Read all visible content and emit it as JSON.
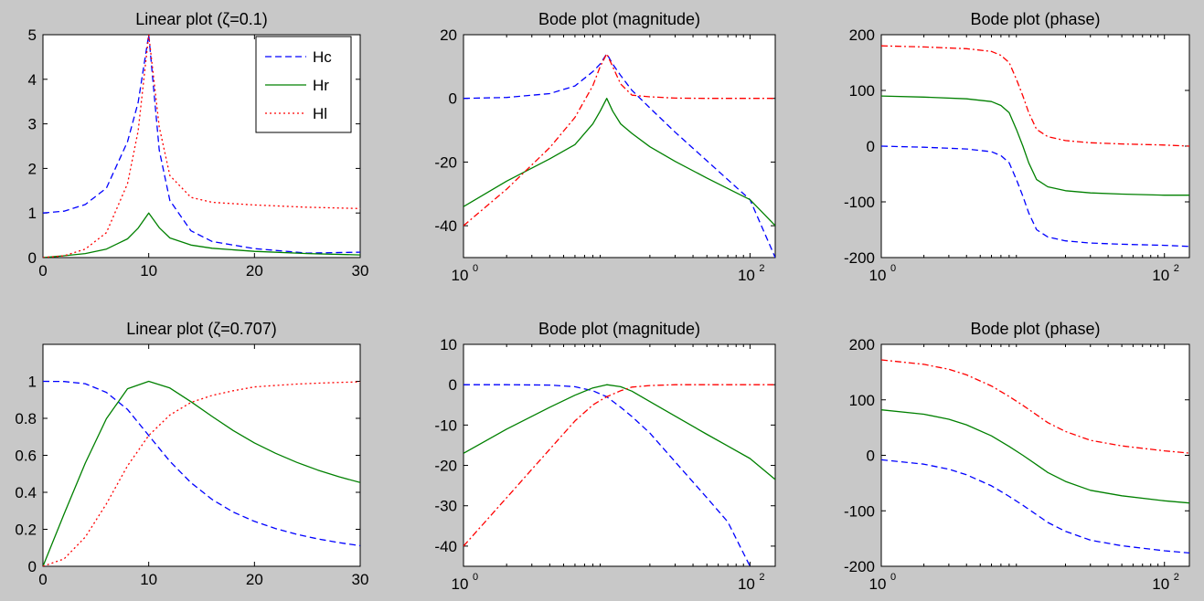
{
  "figure": {
    "background": "#c8c8c8",
    "colors": {
      "Hc": "#0000ff",
      "Hr": "#008000",
      "Hl": "#ff0000"
    },
    "line_styles": {
      "Hc": "dashed",
      "Hr": "solid",
      "Hl": "dotted / dash-dot"
    }
  },
  "chart_data": [
    {
      "id": "p1",
      "type": "line",
      "title": "Linear plot (ζ=0.1)",
      "xscale": "linear",
      "xlim": [
        0,
        30
      ],
      "ylim": [
        0,
        5
      ],
      "xticks": [
        0,
        10,
        20,
        30
      ],
      "xtick_labels": [
        "0",
        "10",
        "20",
        "30"
      ],
      "yticks": [
        0,
        1,
        2,
        3,
        4,
        5
      ],
      "ytick_labels": [
        "0",
        "1",
        "2",
        "3",
        "4",
        "5"
      ],
      "legend": {
        "position": "top-right",
        "entries": [
          "Hc",
          "Hr",
          "Hl"
        ]
      },
      "series": [
        {
          "name": "Hc",
          "style": "dashed",
          "x": [
            0,
            2,
            4,
            6,
            8,
            9,
            10,
            11,
            12,
            14,
            16,
            20,
            25,
            30
          ],
          "y": [
            1.0,
            1.04,
            1.19,
            1.56,
            2.6,
            3.48,
            5.0,
            2.41,
            1.28,
            0.6,
            0.36,
            0.2,
            0.1,
            0.12
          ]
        },
        {
          "name": "Hr",
          "style": "solid",
          "x": [
            0,
            2,
            4,
            6,
            8,
            9,
            10,
            11,
            12,
            14,
            16,
            20,
            25,
            30
          ],
          "y": [
            0.0,
            0.04,
            0.09,
            0.19,
            0.42,
            0.66,
            1.0,
            0.67,
            0.44,
            0.28,
            0.21,
            0.14,
            0.09,
            0.06
          ]
        },
        {
          "name": "Hl",
          "style": "dotted",
          "x": [
            0,
            2,
            4,
            6,
            8,
            9,
            10,
            11,
            12,
            14,
            16,
            20,
            25,
            30
          ],
          "y": [
            0.0,
            0.04,
            0.19,
            0.56,
            1.66,
            2.84,
            5.0,
            2.93,
            1.84,
            1.35,
            1.24,
            1.18,
            1.13,
            1.1
          ]
        }
      ]
    },
    {
      "id": "p2",
      "type": "line",
      "title": "Bode plot (magnitude)",
      "xscale": "log",
      "xlim": [
        1,
        150
      ],
      "ylim": [
        -50,
        20
      ],
      "xticks": [
        1,
        100
      ],
      "xtick_labels": [
        {
          "base": "10",
          "exp": "0"
        },
        {
          "base": "10",
          "exp": "2"
        }
      ],
      "yticks": [
        20,
        0,
        -20,
        -40
      ],
      "ytick_labels": [
        "20",
        "0",
        "-20",
        "-40"
      ],
      "series": [
        {
          "name": "Hc",
          "style": "dashed",
          "x": [
            1,
            2,
            4,
            6,
            8,
            9,
            10,
            11,
            12.5,
            15,
            20,
            30,
            50,
            100,
            150
          ],
          "y": [
            0.0,
            0.3,
            1.5,
            3.9,
            8.4,
            10.8,
            14.0,
            10.8,
            7.2,
            2.5,
            -3.0,
            -10.6,
            -19.6,
            -31.8,
            -50.0
          ]
        },
        {
          "name": "Hr",
          "style": "solid",
          "x": [
            1,
            2,
            4,
            6,
            8,
            9,
            10,
            11,
            12.5,
            15,
            20,
            30,
            50,
            70,
            100,
            150
          ],
          "y": [
            -34.0,
            -26.0,
            -19.0,
            -14.5,
            -8.0,
            -4.0,
            0.0,
            -4.0,
            -8.0,
            -11.0,
            -15.2,
            -19.8,
            -25.0,
            -28.3,
            -31.8,
            -40.0
          ]
        },
        {
          "name": "Hl",
          "style": "dash-dot",
          "x": [
            1,
            2,
            4,
            6,
            8,
            9,
            10,
            11,
            12.5,
            15,
            20,
            30,
            50,
            100,
            150
          ],
          "y": [
            -40.0,
            -28.5,
            -15.5,
            -6.0,
            4.0,
            10.0,
            14.0,
            10.0,
            4.5,
            1.0,
            0.5,
            0.1,
            0.0,
            0.0,
            0.0
          ]
        }
      ]
    },
    {
      "id": "p3",
      "type": "line",
      "title": "Bode plot (phase)",
      "xscale": "log",
      "xlim": [
        1,
        150
      ],
      "ylim": [
        -200,
        200
      ],
      "xticks": [
        1,
        100
      ],
      "xtick_labels": [
        {
          "base": "10",
          "exp": "0"
        },
        {
          "base": "10",
          "exp": "2"
        }
      ],
      "yticks": [
        200,
        100,
        0,
        -100,
        -200
      ],
      "ytick_labels": [
        "200",
        "100",
        "0",
        "-100",
        "-200"
      ],
      "series": [
        {
          "name": "Hc",
          "style": "dashed",
          "x": [
            1,
            2,
            4,
            6,
            7,
            8,
            9,
            10,
            11,
            12.5,
            15,
            20,
            30,
            50,
            100,
            150
          ],
          "y": [
            0,
            -2,
            -5,
            -10,
            -17,
            -30,
            -60,
            -90,
            -120,
            -150,
            -163,
            -170,
            -174,
            -176,
            -178,
            -180
          ]
        },
        {
          "name": "Hr",
          "style": "solid",
          "x": [
            1,
            2,
            4,
            6,
            7,
            8,
            9,
            10,
            11,
            12.5,
            15,
            20,
            30,
            50,
            100,
            150
          ],
          "y": [
            90,
            88,
            85,
            80,
            73,
            60,
            30,
            0,
            -30,
            -60,
            -73,
            -80,
            -84,
            -86,
            -88,
            -88
          ]
        },
        {
          "name": "Hl",
          "style": "dash-dot",
          "x": [
            1,
            2,
            4,
            6,
            7,
            8,
            9,
            10,
            11,
            12.5,
            15,
            20,
            30,
            50,
            100,
            150
          ],
          "y": [
            180,
            178,
            175,
            170,
            163,
            150,
            120,
            90,
            60,
            30,
            17,
            10,
            6,
            4,
            2,
            0
          ]
        }
      ]
    },
    {
      "id": "p4",
      "type": "line",
      "title": "Linear plot (ζ=0.707)",
      "xscale": "linear",
      "xlim": [
        0,
        30
      ],
      "ylim": [
        0,
        1.2
      ],
      "xticks": [
        0,
        10,
        20,
        30
      ],
      "xtick_labels": [
        "0",
        "10",
        "20",
        "30"
      ],
      "yticks": [
        0,
        0.2,
        0.4,
        0.6,
        0.8,
        1
      ],
      "ytick_labels": [
        "0",
        "0.2",
        "0.4",
        "0.6",
        "0.8",
        "1"
      ],
      "series": [
        {
          "name": "Hc",
          "style": "dashed",
          "x": [
            0,
            2,
            4,
            6,
            8,
            10,
            12,
            14,
            16,
            18,
            20,
            22,
            24,
            26,
            28,
            30
          ],
          "y": [
            1.0,
            0.999,
            0.987,
            0.94,
            0.848,
            0.707,
            0.568,
            0.452,
            0.361,
            0.293,
            0.243,
            0.204,
            0.173,
            0.148,
            0.128,
            0.111
          ]
        },
        {
          "name": "Hr",
          "style": "solid",
          "x": [
            0,
            2,
            4,
            6,
            8,
            10,
            12,
            14,
            16,
            18,
            20,
            22,
            24,
            26,
            28,
            30
          ],
          "y": [
            0.0,
            0.283,
            0.558,
            0.798,
            0.96,
            1.0,
            0.964,
            0.89,
            0.81,
            0.734,
            0.667,
            0.611,
            0.562,
            0.52,
            0.484,
            0.453
          ]
        },
        {
          "name": "Hl",
          "style": "dotted",
          "x": [
            0,
            2,
            4,
            6,
            8,
            10,
            12,
            14,
            16,
            18,
            20,
            22,
            24,
            26,
            28,
            30
          ],
          "y": [
            0.0,
            0.04,
            0.158,
            0.338,
            0.543,
            0.707,
            0.818,
            0.886,
            0.924,
            0.949,
            0.97,
            0.978,
            0.985,
            0.99,
            0.994,
            0.997
          ]
        }
      ]
    },
    {
      "id": "p5",
      "type": "line",
      "title": "Bode plot (magnitude)",
      "xscale": "log",
      "xlim": [
        1,
        150
      ],
      "ylim": [
        -45,
        10
      ],
      "xticks": [
        1,
        100
      ],
      "xtick_labels": [
        {
          "base": "10",
          "exp": "0"
        },
        {
          "base": "10",
          "exp": "2"
        }
      ],
      "yticks": [
        10,
        0,
        -10,
        -20,
        -30,
        -40
      ],
      "ytick_labels": [
        "10",
        "0",
        "-10",
        "-20",
        "-30",
        "-40"
      ],
      "series": [
        {
          "name": "Hc",
          "style": "dashed",
          "x": [
            1,
            2,
            4,
            6,
            8,
            10,
            12.5,
            15,
            20,
            30,
            50,
            70,
            100
          ],
          "y": [
            0.0,
            0.0,
            -0.1,
            -0.5,
            -1.5,
            -3.0,
            -5.6,
            -7.9,
            -12.0,
            -19.1,
            -28.0,
            -34.0,
            -45.0
          ]
        },
        {
          "name": "Hr",
          "style": "solid",
          "x": [
            1,
            2,
            4,
            6,
            8,
            10,
            12.5,
            15,
            20,
            30,
            50,
            70,
            100,
            150
          ],
          "y": [
            -17.0,
            -11.0,
            -5.6,
            -2.6,
            -0.8,
            0.0,
            -0.5,
            -1.6,
            -4.2,
            -7.8,
            -12.3,
            -15.2,
            -18.3,
            -23.5
          ]
        },
        {
          "name": "Hl",
          "style": "dash-dot",
          "x": [
            1,
            2,
            4,
            6,
            8,
            10,
            12.5,
            15,
            20,
            30,
            50,
            100,
            150
          ],
          "y": [
            -40.0,
            -28.0,
            -16.0,
            -9.0,
            -5.0,
            -3.0,
            -1.5,
            -0.6,
            -0.2,
            0.0,
            0.0,
            0.0,
            0.0
          ]
        }
      ]
    },
    {
      "id": "p6",
      "type": "line",
      "title": "Bode plot (phase)",
      "xscale": "log",
      "xlim": [
        1,
        150
      ],
      "ylim": [
        -200,
        200
      ],
      "xticks": [
        1,
        100
      ],
      "xtick_labels": [
        {
          "base": "10",
          "exp": "0"
        },
        {
          "base": "10",
          "exp": "2"
        }
      ],
      "yticks": [
        200,
        100,
        0,
        -100,
        -200
      ],
      "ytick_labels": [
        "200",
        "100",
        "0",
        "-100",
        "-200"
      ],
      "series": [
        {
          "name": "Hc",
          "style": "dashed",
          "x": [
            1,
            2,
            3,
            4,
            6,
            8,
            10,
            12.5,
            15,
            20,
            30,
            50,
            100,
            150
          ],
          "y": [
            -8,
            -16,
            -25,
            -35,
            -55,
            -74,
            -90,
            -107,
            -121,
            -137,
            -153,
            -163,
            -172,
            -176
          ]
        },
        {
          "name": "Hr",
          "style": "solid",
          "x": [
            1,
            2,
            3,
            4,
            6,
            8,
            10,
            12.5,
            15,
            20,
            30,
            50,
            100,
            150
          ],
          "y": [
            82,
            74,
            65,
            55,
            35,
            16,
            0,
            -17,
            -31,
            -47,
            -63,
            -73,
            -82,
            -86
          ]
        },
        {
          "name": "Hl",
          "style": "dash-dot",
          "x": [
            1,
            2,
            3,
            4,
            6,
            8,
            10,
            12.5,
            15,
            20,
            30,
            50,
            100,
            150
          ],
          "y": [
            172,
            164,
            155,
            145,
            125,
            106,
            90,
            73,
            59,
            43,
            27,
            17,
            8,
            4
          ]
        }
      ]
    }
  ]
}
